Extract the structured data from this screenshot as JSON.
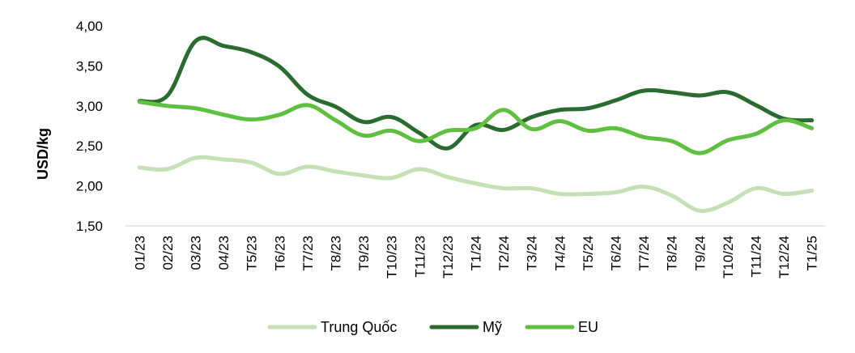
{
  "chart_data": {
    "type": "line",
    "ylabel": "USD/kg",
    "xlabel": "",
    "ylim": [
      1.5,
      4.0
    ],
    "yticks": [
      "4,00",
      "3,50",
      "3,00",
      "2,50",
      "2,00",
      "1,50"
    ],
    "ytick_values": [
      4.0,
      3.5,
      3.0,
      2.5,
      2.0,
      1.5
    ],
    "grid": false,
    "legend": "bottom",
    "categories": [
      "01/23",
      "02/23",
      "03/23",
      "04/23",
      "T5/23",
      "T6/23",
      "T7/23",
      "T8/23",
      "T9/23",
      "T10/23",
      "T11/23",
      "T12/23",
      "T1/24",
      "T2/24",
      "T3/24",
      "T4/24",
      "T5/24",
      "T6/24",
      "T7/24",
      "T8/24",
      "T9/24",
      "T10/24",
      "T11/24",
      "T12/24",
      "T1/25"
    ],
    "series": [
      {
        "name": "Trung Quốc",
        "color": "#c5e0b4",
        "values": [
          2.23,
          2.21,
          2.35,
          2.33,
          2.29,
          2.15,
          2.24,
          2.18,
          2.13,
          2.1,
          2.21,
          2.11,
          2.03,
          1.97,
          1.97,
          1.9,
          1.9,
          1.92,
          1.99,
          1.88,
          1.69,
          1.79,
          1.97,
          1.9,
          1.94
        ]
      },
      {
        "name": "Mỹ",
        "color": "#2a6b2f",
        "values": [
          3.06,
          3.13,
          3.81,
          3.75,
          3.67,
          3.49,
          3.14,
          2.99,
          2.8,
          2.86,
          2.66,
          2.47,
          2.76,
          2.7,
          2.86,
          2.95,
          2.97,
          3.07,
          3.19,
          3.17,
          3.13,
          3.17,
          3.01,
          2.84,
          2.82
        ]
      },
      {
        "name": "EU",
        "color": "#5fbf3f",
        "values": [
          3.05,
          3.0,
          2.97,
          2.89,
          2.83,
          2.89,
          3.01,
          2.82,
          2.63,
          2.69,
          2.56,
          2.69,
          2.72,
          2.95,
          2.71,
          2.81,
          2.69,
          2.72,
          2.61,
          2.56,
          2.41,
          2.57,
          2.65,
          2.82,
          2.72
        ]
      }
    ]
  }
}
